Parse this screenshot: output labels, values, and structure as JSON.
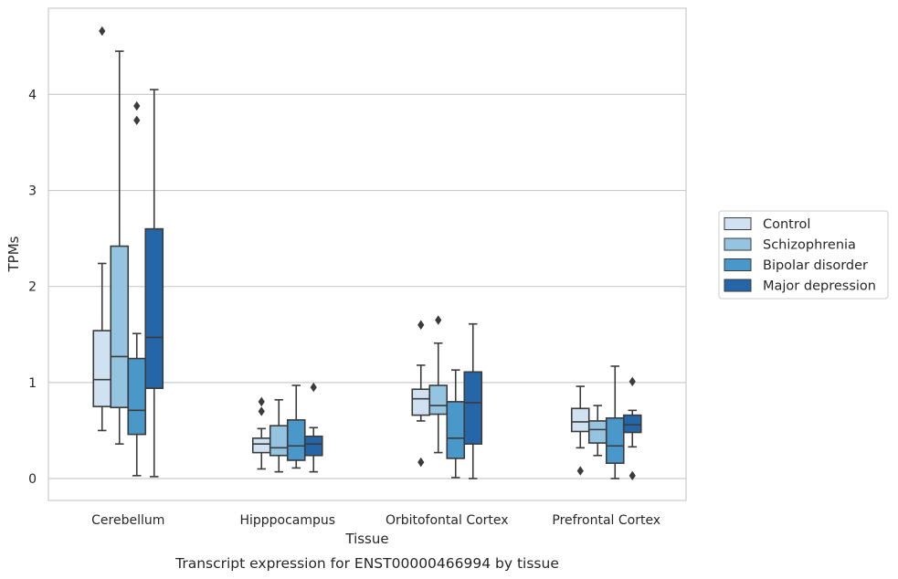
{
  "chart_data": {
    "type": "boxplot",
    "caption": "Transcript expression for ENST00000466994 by tissue",
    "xlabel": "Tissue",
    "ylabel": "TPMs",
    "ylim": [
      -0.22,
      4.9
    ],
    "yticks": [
      0,
      1,
      2,
      3,
      4
    ],
    "grid": "horizontal",
    "legend_position": "right",
    "categories": [
      "Cerebellum",
      "Hipppocampus",
      "Orbitofontal Cortex",
      "Prefrontal Cortex"
    ],
    "series": [
      {
        "name": "Control",
        "color": "#d0e1f2",
        "boxes": [
          {
            "whislo": 0.5,
            "q1": 0.75,
            "med": 1.03,
            "q3": 1.54,
            "whishi": 2.24,
            "fliers": [
              4.66
            ]
          },
          {
            "whislo": 0.1,
            "q1": 0.27,
            "med": 0.36,
            "q3": 0.42,
            "whishi": 0.52,
            "fliers": [
              0.7,
              0.8
            ]
          },
          {
            "whislo": 0.6,
            "q1": 0.66,
            "med": 0.83,
            "q3": 0.93,
            "whishi": 1.18,
            "fliers": [
              0.17,
              1.6
            ]
          },
          {
            "whislo": 0.32,
            "q1": 0.49,
            "med": 0.59,
            "q3": 0.73,
            "whishi": 0.96,
            "fliers": [
              0.08
            ]
          }
        ]
      },
      {
        "name": "Schizophrenia",
        "color": "#94c4df",
        "boxes": [
          {
            "whislo": 0.36,
            "q1": 0.74,
            "med": 1.27,
            "q3": 2.42,
            "whishi": 4.45,
            "fliers": []
          },
          {
            "whislo": 0.07,
            "q1": 0.24,
            "med": 0.32,
            "q3": 0.55,
            "whishi": 0.82,
            "fliers": []
          },
          {
            "whislo": 0.27,
            "q1": 0.67,
            "med": 0.76,
            "q3": 0.97,
            "whishi": 1.41,
            "fliers": [
              1.65
            ]
          },
          {
            "whislo": 0.24,
            "q1": 0.37,
            "med": 0.51,
            "q3": 0.6,
            "whishi": 0.76,
            "fliers": []
          }
        ]
      },
      {
        "name": "Bipolar disorder",
        "color": "#4a98c9",
        "boxes": [
          {
            "whislo": 0.03,
            "q1": 0.46,
            "med": 0.71,
            "q3": 1.25,
            "whishi": 1.51,
            "fliers": [
              3.73,
              3.88
            ]
          },
          {
            "whislo": 0.11,
            "q1": 0.19,
            "med": 0.34,
            "q3": 0.61,
            "whishi": 0.97,
            "fliers": []
          },
          {
            "whislo": 0.01,
            "q1": 0.21,
            "med": 0.42,
            "q3": 0.8,
            "whishi": 1.13,
            "fliers": []
          },
          {
            "whislo": 0.0,
            "q1": 0.16,
            "med": 0.34,
            "q3": 0.63,
            "whishi": 1.17,
            "fliers": []
          }
        ]
      },
      {
        "name": "Major depression",
        "color": "#2566a8",
        "boxes": [
          {
            "whislo": 0.02,
            "q1": 0.94,
            "med": 1.47,
            "q3": 2.6,
            "whishi": 4.05,
            "fliers": []
          },
          {
            "whislo": 0.07,
            "q1": 0.24,
            "med": 0.36,
            "q3": 0.44,
            "whishi": 0.53,
            "fliers": [
              0.95
            ]
          },
          {
            "whislo": 0.0,
            "q1": 0.36,
            "med": 0.79,
            "q3": 1.11,
            "whishi": 1.61,
            "fliers": []
          },
          {
            "whislo": 0.33,
            "q1": 0.48,
            "med": 0.56,
            "q3": 0.66,
            "whishi": 0.71,
            "fliers": [
              0.03,
              1.01
            ]
          }
        ]
      }
    ]
  }
}
